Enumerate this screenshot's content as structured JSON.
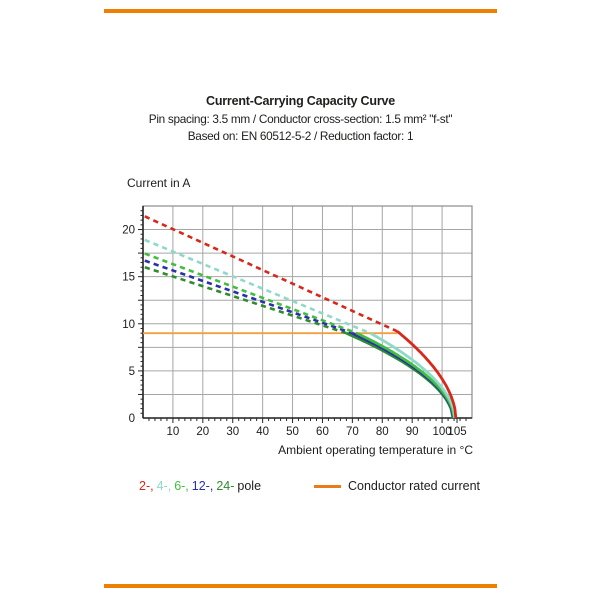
{
  "accent": {
    "bar_color": "#ee7f00"
  },
  "chart_data": {
    "type": "line",
    "title": "Current-Carrying Capacity Curve",
    "subtitle1": "Pin spacing: 3.5 mm / Conductor cross-section: 1.5 mm² \"f-st\"",
    "subtitle2": "Based on: EN 60512-5-2 / Reduction factor: 1",
    "ylabel": "Current in A",
    "xlabel": "Ambient operating temperature in °C",
    "xlim": [
      0,
      110
    ],
    "ylim": [
      0,
      22.5
    ],
    "x_tick_labels": [
      10,
      20,
      30,
      40,
      50,
      60,
      70,
      80,
      90,
      100,
      105
    ],
    "y_tick_labels": [
      0,
      5,
      10,
      15,
      20
    ],
    "x_grid_step": 10,
    "y_grid_step": 2.5,
    "x_minor_step": 2,
    "y_minor_step": 0.5,
    "grid": true,
    "legend_position": "bottom",
    "rated_current": {
      "value_a": 9,
      "line_end_t_c": 85,
      "color": "#f2a03e"
    },
    "series": [
      {
        "name": "2-pole",
        "legend_label": "2-,",
        "color": "#d8281c",
        "current_at_0c_a": 21.4,
        "knee_temp_c": 85,
        "knee_current_a": 9.2,
        "max_temp_c": 104.6
      },
      {
        "name": "4-pole",
        "legend_label": "4-,",
        "color": "#8fd9c8",
        "current_at_0c_a": 18.9,
        "knee_temp_c": 76,
        "knee_current_a": 9.0,
        "max_temp_c": 104.3
      },
      {
        "name": "6-pole",
        "legend_label": "6-,",
        "color": "#41bd41",
        "current_at_0c_a": 17.45,
        "knee_temp_c": 71.5,
        "knee_current_a": 9.0,
        "max_temp_c": 104.0
      },
      {
        "name": "12-pole",
        "legend_label": "12-,",
        "color": "#2a2fae",
        "current_at_0c_a": 16.7,
        "knee_temp_c": 70,
        "knee_current_a": 9.0,
        "max_temp_c": 103.8
      },
      {
        "name": "24-pole",
        "legend_label": "24-",
        "color": "#2e8b2e",
        "current_at_0c_a": 16.0,
        "knee_temp_c": 68,
        "knee_current_a": 9.0,
        "max_temp_c": 103.6
      }
    ],
    "legend": {
      "pole_suffix": "pole",
      "rated_label": "Conductor rated current",
      "rated_swatch_color": "#e87b1a"
    }
  }
}
